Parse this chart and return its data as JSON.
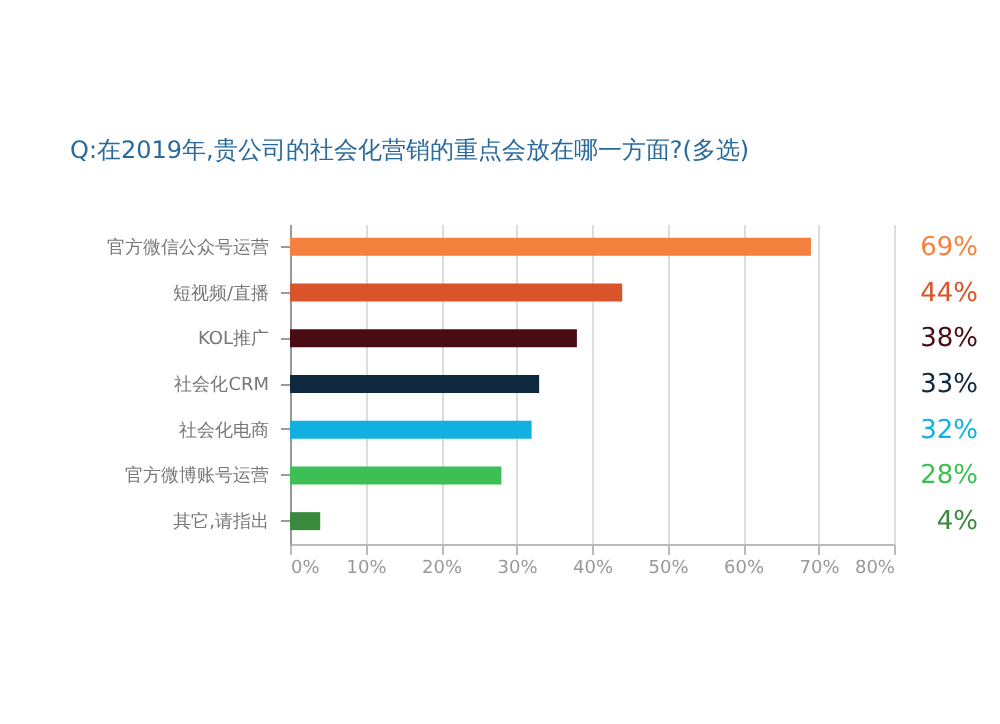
{
  "chart_data": {
    "type": "bar",
    "orientation": "horizontal",
    "title": "Q:在2019年,贵公司的社会化营销的重点会放在哪一方面?(多选)",
    "categories": [
      "官方微信公众号运营",
      "短视频/直播",
      "KOL推广",
      "社会化CRM",
      "社会化电商",
      "官方微博账号运营",
      "其它,请指出"
    ],
    "values": [
      69,
      44,
      38,
      33,
      32,
      28,
      4
    ],
    "colors": [
      "#f5813f",
      "#d9542a",
      "#4a0c12",
      "#0f2a40",
      "#12b0e0",
      "#3dbf55",
      "#3a8a3e"
    ],
    "value_labels": [
      "69%",
      "44%",
      "38%",
      "33%",
      "32%",
      "28%",
      "4%"
    ],
    "xlim": [
      0,
      80
    ],
    "xticks": [
      {
        "value": 0,
        "label": "0%"
      },
      {
        "value": 10,
        "label": "10%"
      },
      {
        "value": 20,
        "label": "20%"
      },
      {
        "value": 30,
        "label": "30%"
      },
      {
        "value": 40,
        "label": "40%"
      },
      {
        "value": 50,
        "label": "50%"
      },
      {
        "value": 60,
        "label": "60%"
      },
      {
        "value": 70,
        "label": "70%"
      },
      {
        "value": 80,
        "label": "80%"
      }
    ],
    "grid": "x"
  }
}
